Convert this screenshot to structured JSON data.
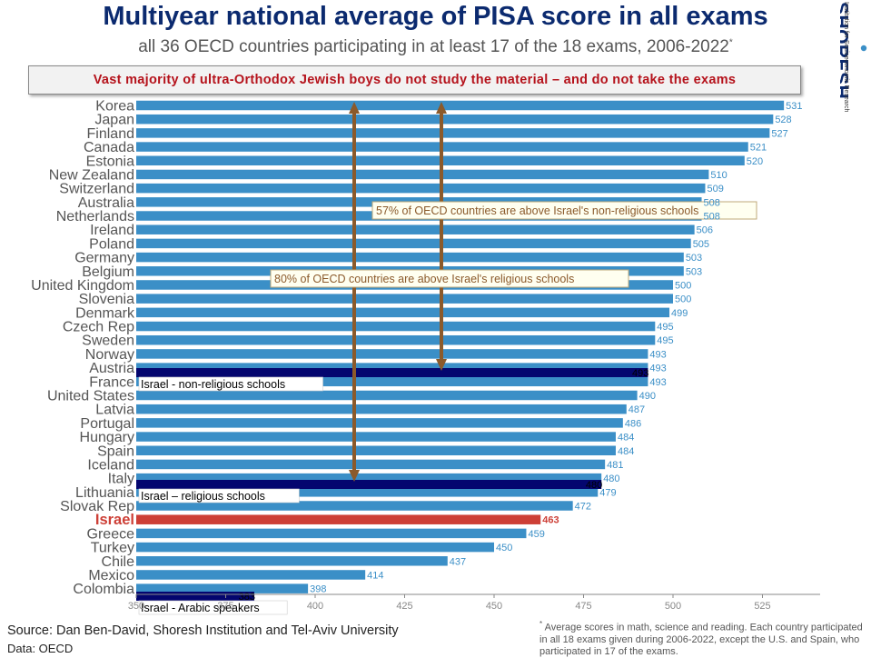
{
  "header": {
    "title": "Multiyear national average of PISA score in all exams",
    "subtitle": "all 36 OECD countries participating in at least 17 of the 18 exams, 2006-2022",
    "subtitle_mark": "*",
    "callout": "Vast majority of ultra-Orthodox Jewish boys do not study the material – and do not take the exams"
  },
  "brand": {
    "name": "SHORESH",
    "tagline": "Institution for Socioeconomic Research"
  },
  "footer": {
    "source": "Source: Dan Ben-David, Shoresh Institution and Tel-Aviv University",
    "data": "Data: OECD",
    "footnote_mark": "*",
    "footnote": "Average scores in math, science and reading. Each country participated in all 18 exams given during 2006-2022, except the U.S. and Spain, who participated in 17 of the exams."
  },
  "chart_data": {
    "type": "bar",
    "orientation": "horizontal",
    "xlim": [
      350,
      540
    ],
    "x_ticks": [
      350,
      375,
      400,
      425,
      450,
      475,
      500,
      525
    ],
    "grid": false,
    "colors": {
      "country": "#3b8fc7",
      "israel": "#cd3f36",
      "israel_subgroup": "#04066f",
      "arrow": "#8b5a2b",
      "country_label": "#555555",
      "value_label": "#3b8fc7"
    },
    "categories": [
      "Korea",
      "Japan",
      "Finland",
      "Canada",
      "Estonia",
      "New Zealand",
      "Switzerland",
      "Australia",
      "Netherlands",
      "Ireland",
      "Poland",
      "Germany",
      "Belgium",
      "United Kingdom",
      "Slovenia",
      "Denmark",
      "Czech Rep",
      "Sweden",
      "Norway",
      "Austria",
      "France",
      "United States",
      "Latvia",
      "Portugal",
      "Hungary",
      "Spain",
      "Iceland",
      "Italy",
      "Lithuania",
      "Slovak Rep",
      "Israel",
      "Greece",
      "Turkey",
      "Chile",
      "Mexico",
      "Colombia"
    ],
    "values": [
      531,
      528,
      527,
      521,
      520,
      510,
      509,
      508,
      508,
      506,
      505,
      503,
      503,
      500,
      500,
      499,
      495,
      495,
      493,
      493,
      493,
      490,
      487,
      486,
      484,
      484,
      481,
      480,
      479,
      472,
      463,
      459,
      450,
      437,
      414,
      398
    ],
    "highlight": "Israel",
    "overlays": [
      {
        "label": "Israel - non-religious schools",
        "value": 493
      },
      {
        "label": "Israel – religious schools",
        "value": 480
      },
      {
        "label": "Israel - Arabic speakers",
        "value": 383
      }
    ],
    "annotations": [
      "57% of OECD countries are above Israel's non-religious schools",
      "80% of OECD countries are above Israel's religious schools"
    ]
  }
}
